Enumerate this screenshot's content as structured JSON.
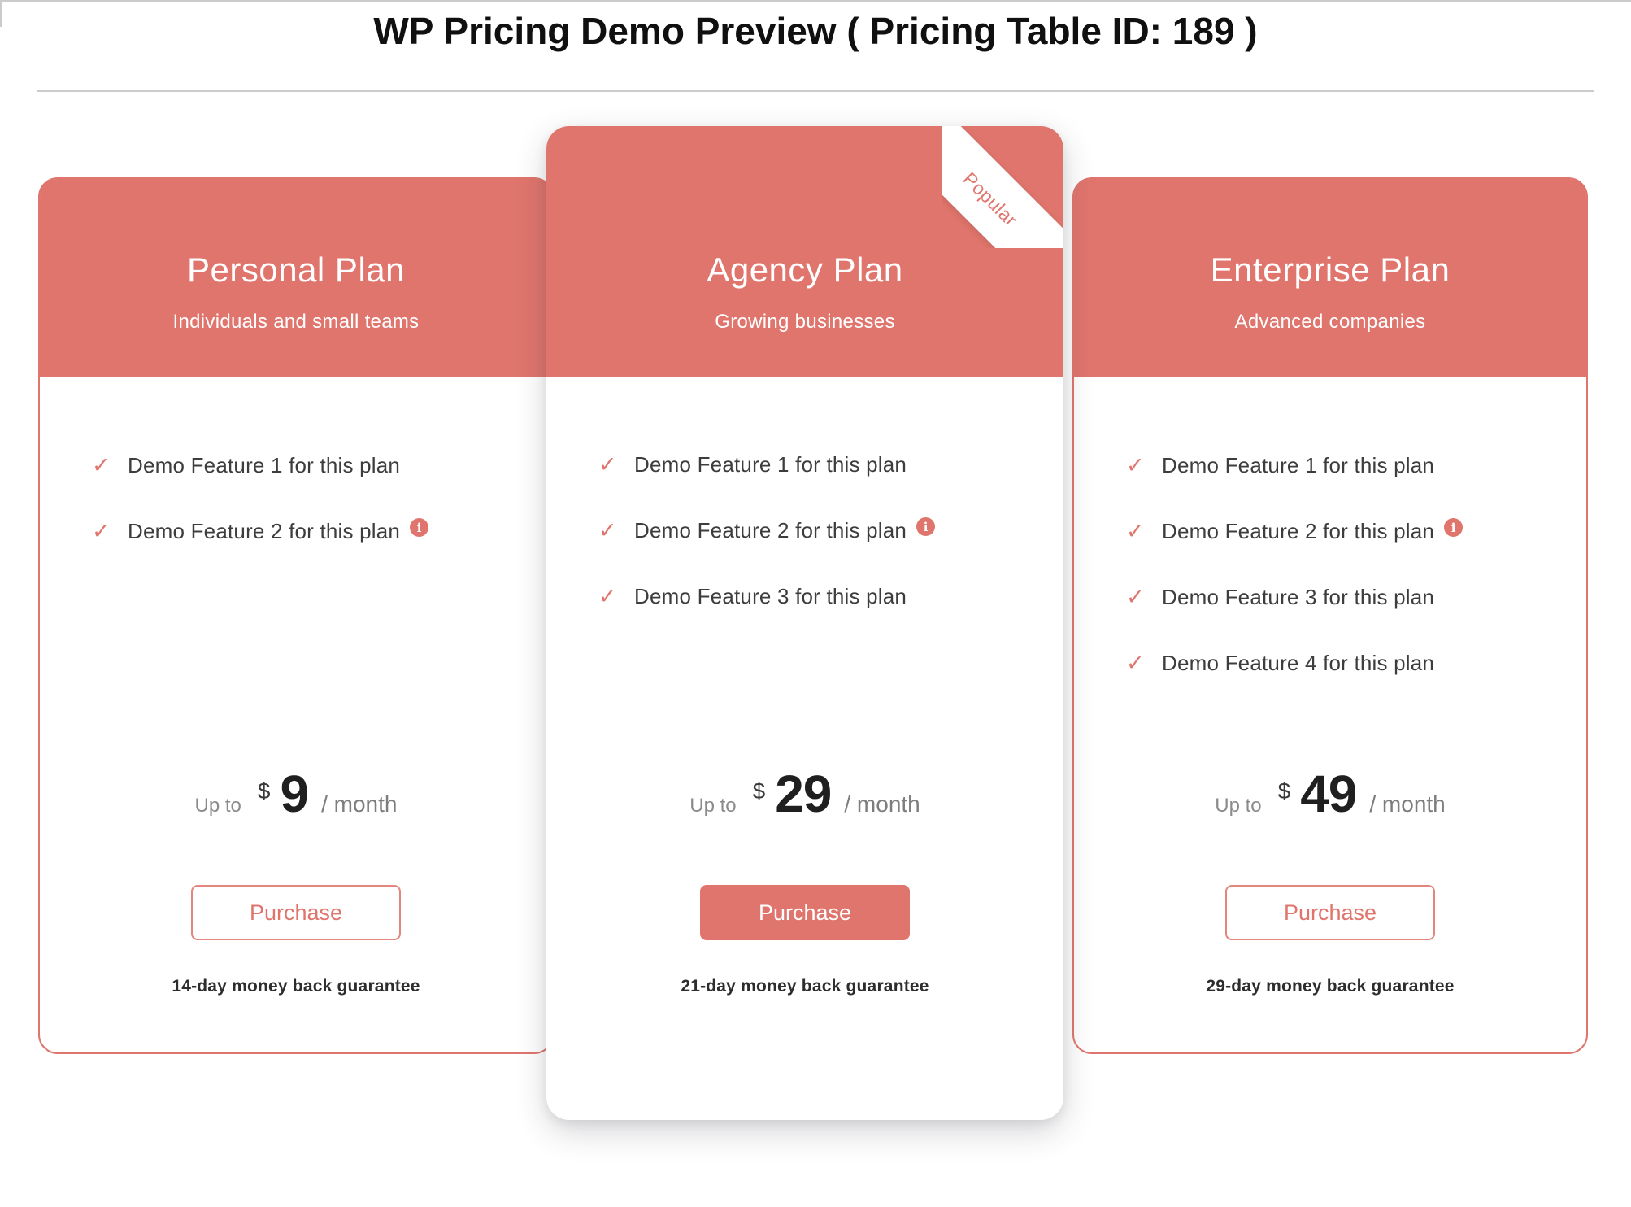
{
  "page": {
    "title": "WP Pricing Demo Preview ( Pricing Table ID: 189 )"
  },
  "colors": {
    "accent": "#E0756D",
    "header_text": "#FFFFFF",
    "feature_text": "#3D3D3D",
    "muted_text": "#8B8B8B",
    "price_text": "#1F1F1F",
    "divider": "#CCCCCC"
  },
  "icons": {
    "check": "✓",
    "info": "i"
  },
  "ribbon_label": "Popular",
  "plans": [
    {
      "name": "Personal Plan",
      "tagline": "Individuals and small teams",
      "popular": false,
      "features": [
        {
          "text": "Demo Feature 1 for this plan",
          "info": false
        },
        {
          "text": "Demo Feature 2 for this plan",
          "info": true
        }
      ],
      "price": {
        "prefix": "Up to",
        "currency": "$",
        "amount": "9",
        "suffix": "/ month"
      },
      "button": "Purchase",
      "guarantee": "14-day money back guarantee"
    },
    {
      "name": "Agency Plan",
      "tagline": "Growing businesses",
      "popular": true,
      "features": [
        {
          "text": "Demo Feature 1 for this plan",
          "info": false
        },
        {
          "text": "Demo Feature 2 for this plan",
          "info": true
        },
        {
          "text": "Demo Feature 3 for this plan",
          "info": false
        }
      ],
      "price": {
        "prefix": "Up to",
        "currency": "$",
        "amount": "29",
        "suffix": "/ month"
      },
      "button": "Purchase",
      "guarantee": "21-day money back guarantee"
    },
    {
      "name": "Enterprise Plan",
      "tagline": "Advanced companies",
      "popular": false,
      "features": [
        {
          "text": "Demo Feature 1 for this plan",
          "info": false
        },
        {
          "text": "Demo Feature 2 for this plan",
          "info": true
        },
        {
          "text": "Demo Feature 3 for this plan",
          "info": false
        },
        {
          "text": "Demo Feature 4 for this plan",
          "info": false
        }
      ],
      "price": {
        "prefix": "Up to",
        "currency": "$",
        "amount": "49",
        "suffix": "/ month"
      },
      "button": "Purchase",
      "guarantee": "29-day money back guarantee"
    }
  ]
}
